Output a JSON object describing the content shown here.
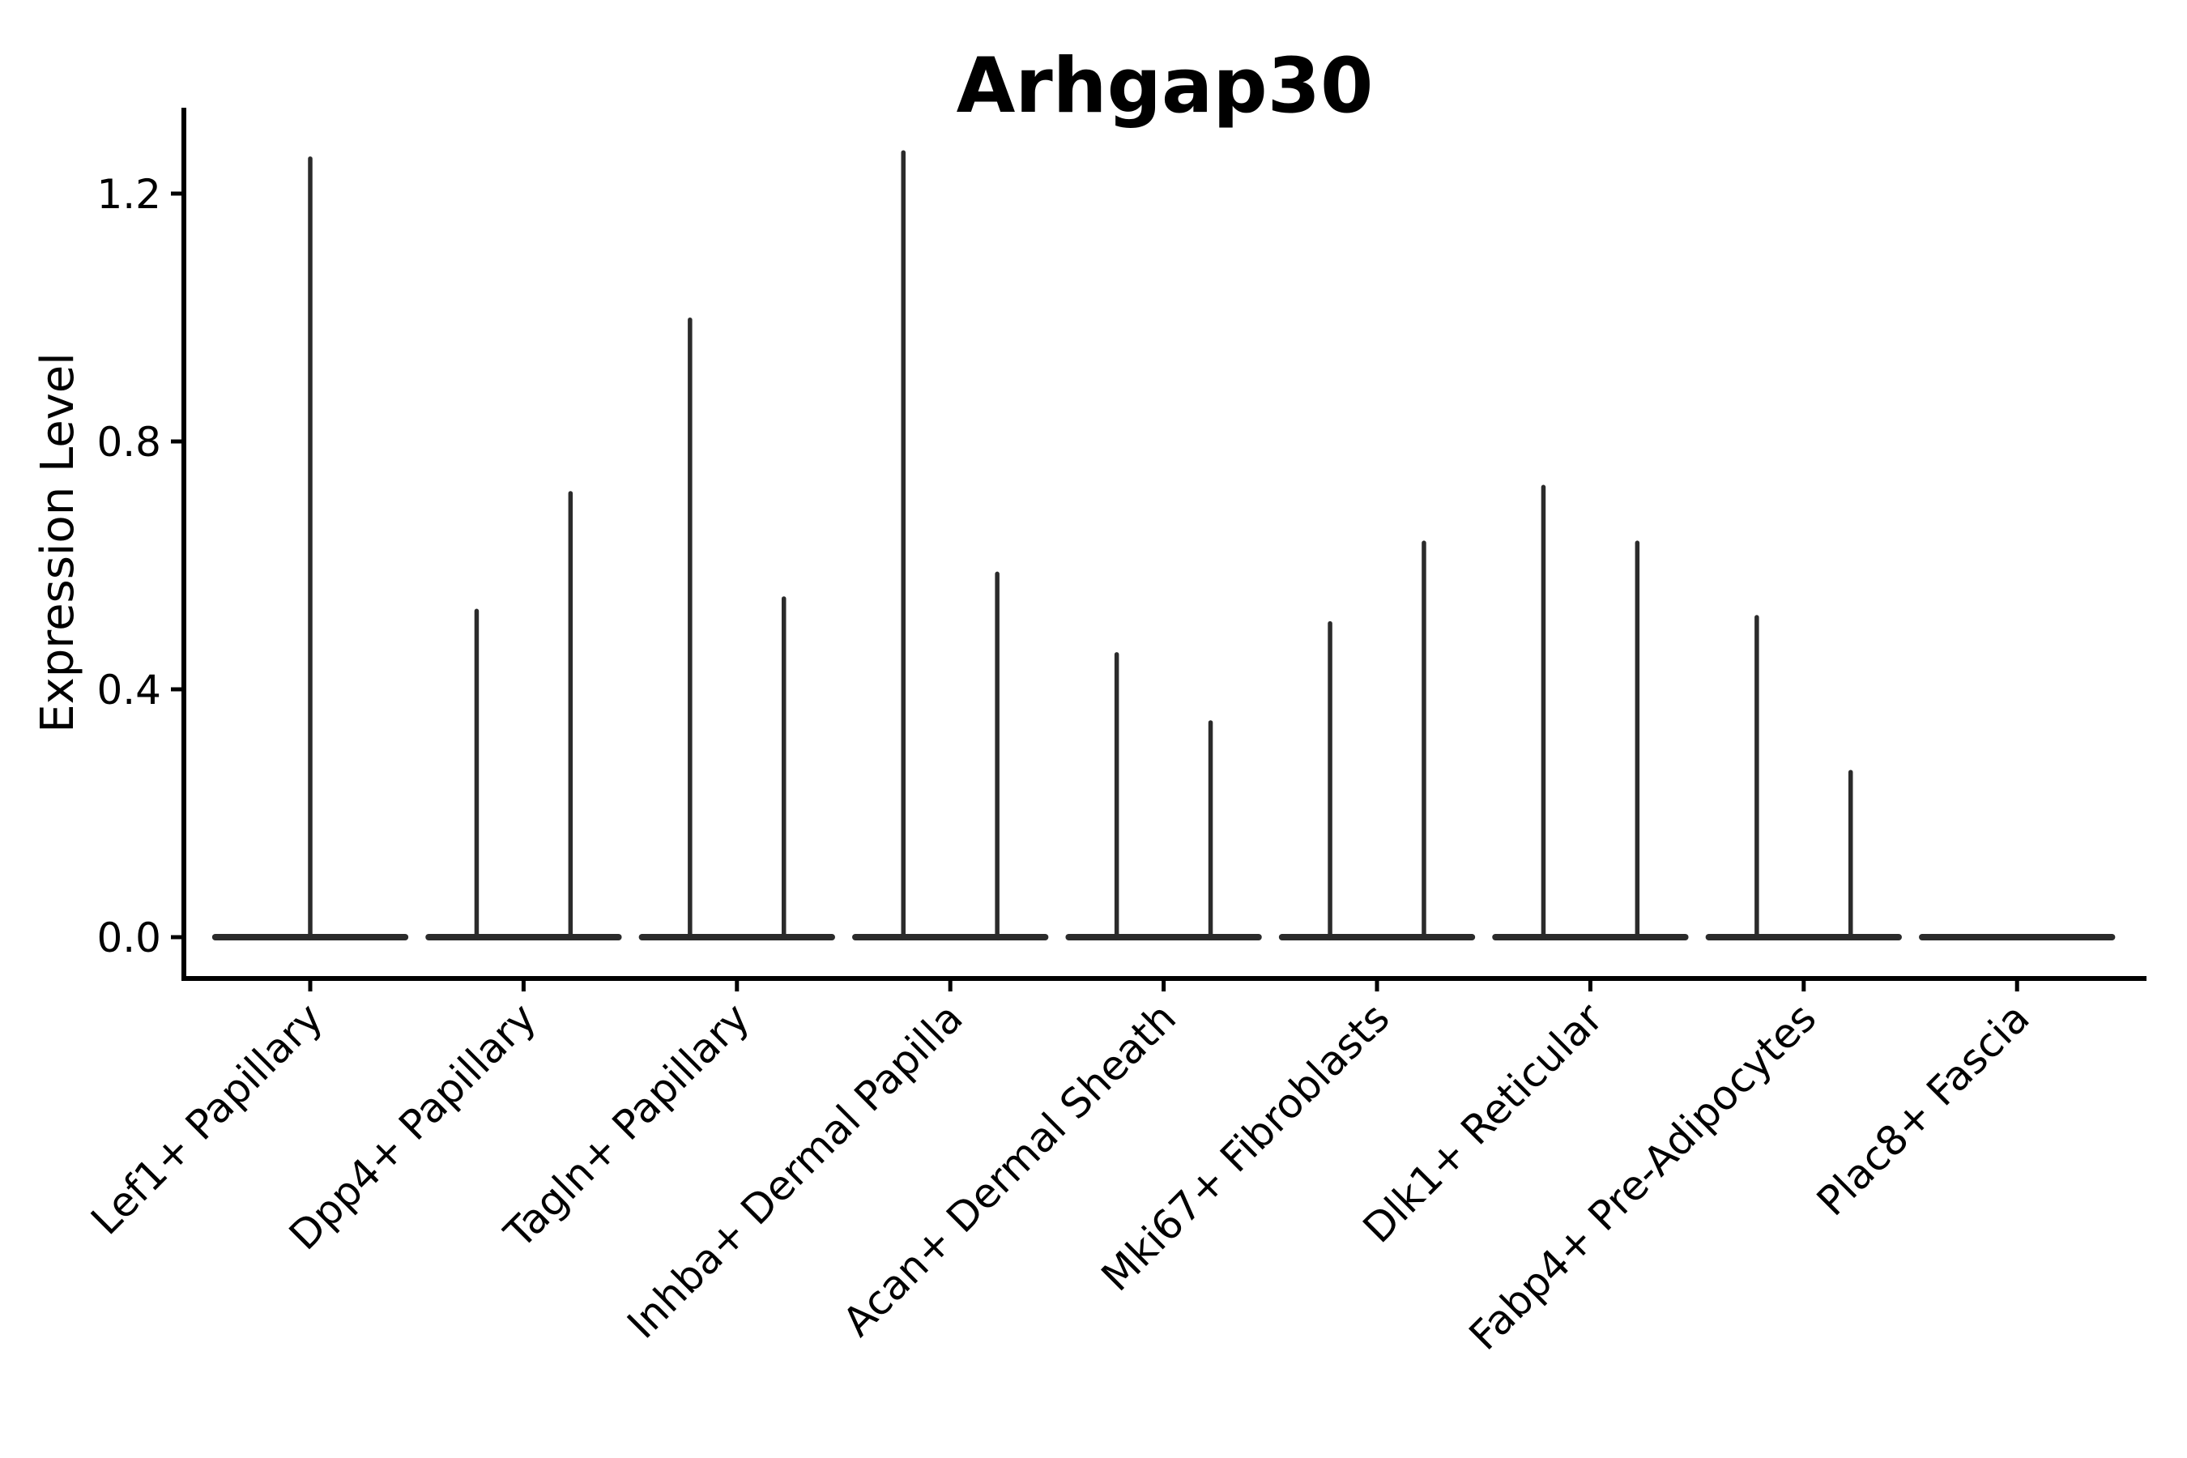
{
  "chart_data": {
    "type": "violin",
    "title": "Arhgap30",
    "ylabel": "Expression Level",
    "xlabel": "",
    "ytick_labels": [
      "0.0",
      "0.4",
      "0.8",
      "1.2"
    ],
    "ytick_values": [
      0.0,
      0.4,
      0.8,
      1.2
    ],
    "ylim": [
      -0.067,
      1.34
    ],
    "grid": false,
    "legend": "none",
    "line_color": "#2b2b2b",
    "axis_color": "#000000",
    "categories": [
      "Lef1+ Papillary",
      "Dpp4+ Papillary",
      "Tagln+ Papillary",
      "Inhba+ Dermal Papilla",
      "Acan+ Dermal Sheath",
      "Mki67+ Fibroblasts",
      "Dlk1+ Reticular",
      "Fabp4+ Pre-Adipocytes",
      "Plac8+ Fascia"
    ],
    "violins": [
      {
        "category": "Lef1+ Papillary",
        "base_halfwidth_frac": 0.46,
        "spikes": [
          {
            "offset_frac": 0.0,
            "max": 1.26
          }
        ]
      },
      {
        "category": "Dpp4+ Papillary",
        "base_halfwidth_frac": 0.46,
        "spikes": [
          {
            "offset_frac": -0.22,
            "max": 0.53
          },
          {
            "offset_frac": 0.22,
            "max": 0.72
          }
        ]
      },
      {
        "category": "Tagln+ Papillary",
        "base_halfwidth_frac": 0.46,
        "spikes": [
          {
            "offset_frac": -0.22,
            "max": 1.0
          },
          {
            "offset_frac": 0.22,
            "max": 0.55
          }
        ]
      },
      {
        "category": "Inhba+ Dermal Papilla",
        "base_halfwidth_frac": 0.46,
        "spikes": [
          {
            "offset_frac": -0.22,
            "max": 1.27
          },
          {
            "offset_frac": 0.22,
            "max": 0.59
          }
        ]
      },
      {
        "category": "Acan+ Dermal Sheath",
        "base_halfwidth_frac": 0.46,
        "spikes": [
          {
            "offset_frac": -0.22,
            "max": 0.46
          },
          {
            "offset_frac": 0.22,
            "max": 0.35
          }
        ]
      },
      {
        "category": "Mki67+ Fibroblasts",
        "base_halfwidth_frac": 0.46,
        "spikes": [
          {
            "offset_frac": -0.22,
            "max": 0.51
          },
          {
            "offset_frac": 0.22,
            "max": 0.64
          }
        ]
      },
      {
        "category": "Dlk1+ Reticular",
        "base_halfwidth_frac": 0.46,
        "spikes": [
          {
            "offset_frac": -0.22,
            "max": 0.73
          },
          {
            "offset_frac": 0.22,
            "max": 0.64
          }
        ]
      },
      {
        "category": "Fabp4+ Pre-Adipocytes",
        "base_halfwidth_frac": 0.46,
        "spikes": [
          {
            "offset_frac": -0.22,
            "max": 0.52
          },
          {
            "offset_frac": 0.22,
            "max": 0.27
          }
        ]
      },
      {
        "category": "Plac8+ Fascia",
        "base_halfwidth_frac": 0.46,
        "spikes": []
      }
    ]
  }
}
